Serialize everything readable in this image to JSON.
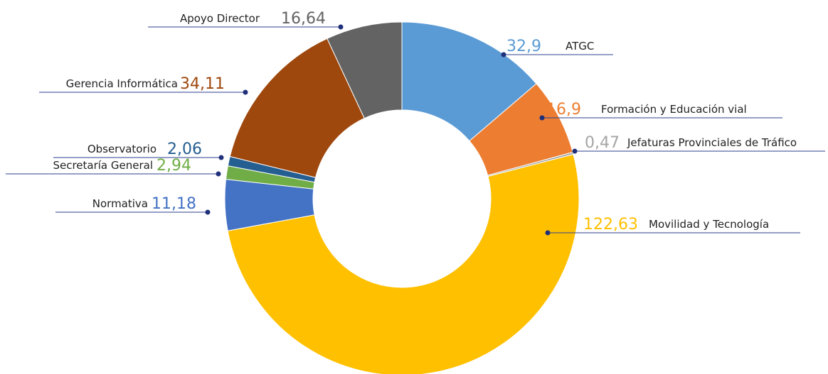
{
  "chart_data": {
    "type": "donut",
    "categories": [
      "ATGC",
      "Formación y Educación vial",
      "Jefaturas Provinciales de Tráfico",
      "Movilidad y Tecnología",
      "Normativa",
      "Secretaría General",
      "Observatorio",
      "Gerencia Informática",
      "Apoyo Director"
    ],
    "values": [
      32.9,
      16.9,
      0.47,
      122.63,
      11.18,
      2.94,
      2.06,
      34.11,
      16.64
    ],
    "value_labels": [
      "32,9",
      "16,9",
      "0,47",
      "122,63",
      "11,18",
      "2,94",
      "2,06",
      "34,11",
      "16,64"
    ],
    "colors": [
      "#5b9bd5",
      "#ed7d31",
      "#a5a5a5",
      "#ffc000",
      "#4472c4",
      "#70ad47",
      "#255e91",
      "#9e480e",
      "#636363"
    ]
  }
}
